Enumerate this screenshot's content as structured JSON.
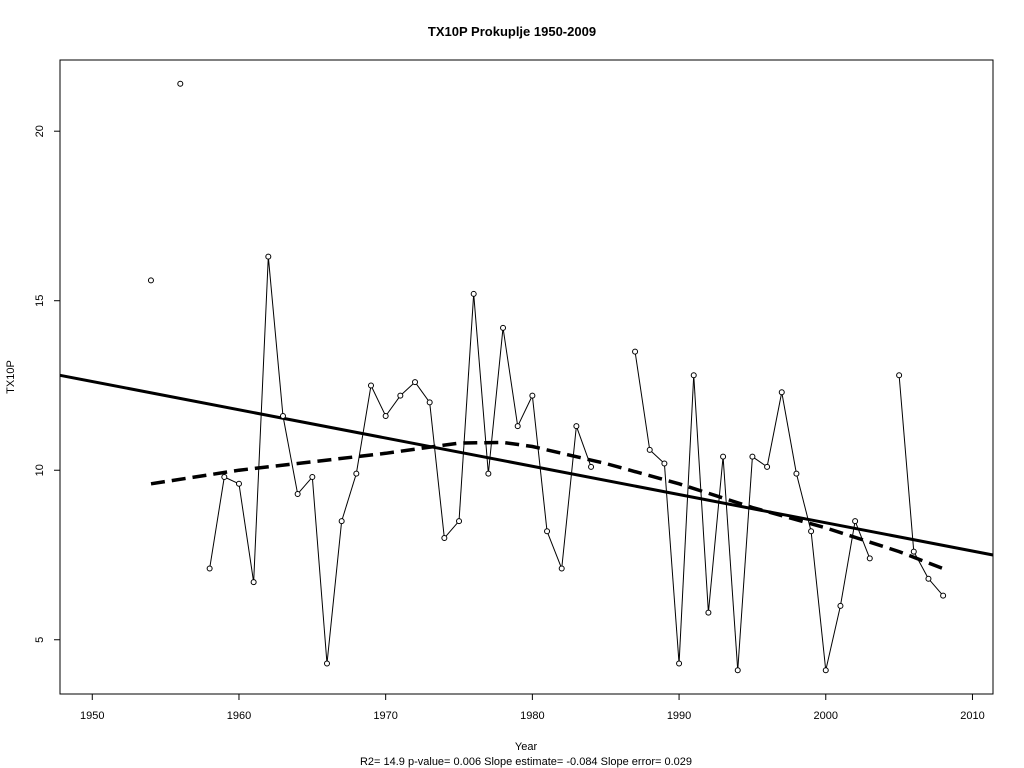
{
  "chart_data": {
    "type": "line",
    "title": "TX10P   Prokuplje 1950-2009",
    "xlabel": "Year",
    "ylabel": "TX10P",
    "footer": "R2= 14.9  p-value= 0.006  Slope estimate= -0.084  Slope error= 0.029",
    "xlim": [
      1947.8,
      2011.4
    ],
    "ylim": [
      3.4,
      22.1
    ],
    "x_ticks": [
      1950,
      1960,
      1970,
      1980,
      1990,
      2000,
      2010
    ],
    "y_ticks": [
      5,
      10,
      15,
      20
    ],
    "grid": false,
    "legend": "none",
    "series": [
      {
        "style": "points-with-lines",
        "x": [
          1954,
          1956,
          1958,
          1959,
          1960,
          1961,
          1962,
          1963,
          1964,
          1965,
          1966,
          1967,
          1968,
          1969,
          1970,
          1971,
          1972,
          1973,
          1974,
          1975,
          1976,
          1977,
          1978,
          1979,
          1980,
          1981,
          1982,
          1983,
          1984,
          1987,
          1988,
          1989,
          1990,
          1991,
          1992,
          1993,
          1994,
          1995,
          1996,
          1997,
          1998,
          1999,
          2000,
          2001,
          2002,
          2003,
          2005,
          2006,
          2007,
          2008
        ],
        "y": [
          15.6,
          21.4,
          7.1,
          9.8,
          9.6,
          6.7,
          16.3,
          11.6,
          9.3,
          9.8,
          4.3,
          8.5,
          9.9,
          12.5,
          11.6,
          12.2,
          12.6,
          12.0,
          8.0,
          8.5,
          15.2,
          9.9,
          14.2,
          11.3,
          12.2,
          8.2,
          7.1,
          11.3,
          10.1,
          13.5,
          10.6,
          10.2,
          4.3,
          12.8,
          5.8,
          10.4,
          4.1,
          10.4,
          10.1,
          12.3,
          9.9,
          8.2,
          4.1,
          6.0,
          8.5,
          7.4,
          12.8,
          7.6,
          6.8,
          6.3
        ]
      },
      {
        "style": "linear-trend",
        "x": [
          1947.8,
          2011.4
        ],
        "y": [
          12.8,
          7.5
        ]
      },
      {
        "style": "dashed-smooth",
        "x": [
          1954,
          1960,
          1965,
          1970,
          1975,
          1978,
          1980,
          1985,
          1990,
          1995,
          2000,
          2005,
          2008
        ],
        "y": [
          9.6,
          10.0,
          10.25,
          10.5,
          10.8,
          10.82,
          10.7,
          10.2,
          9.6,
          8.9,
          8.3,
          7.6,
          7.1
        ]
      }
    ],
    "gap_breaks": [
      1956,
      1958,
      1984,
      1987,
      2003,
      2005
    ]
  }
}
